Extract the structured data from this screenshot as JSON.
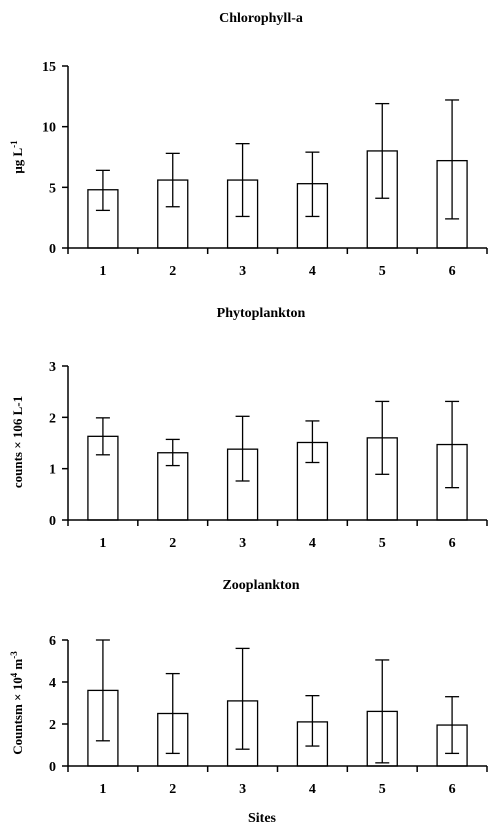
{
  "chart_data": [
    {
      "type": "bar",
      "title": "Chlorophyll-a",
      "xlabel": "",
      "ylabel_main": "μg L",
      "ylabel_sup": "-1",
      "categories": [
        "1",
        "2",
        "3",
        "4",
        "5",
        "6"
      ],
      "values": [
        4.8,
        5.6,
        5.6,
        5.3,
        8.0,
        7.2
      ],
      "error_low": [
        3.1,
        3.4,
        2.6,
        2.6,
        4.1,
        2.4
      ],
      "error_high": [
        6.4,
        7.8,
        8.6,
        7.9,
        11.9,
        12.2
      ],
      "ylim": [
        0,
        15
      ],
      "yticks": [
        "0",
        "5",
        "10",
        "15"
      ],
      "ytick_values": [
        0,
        5,
        10,
        15
      ],
      "grid": false,
      "colors": {
        "bar_fill": "#ffffff",
        "bar_stroke": "#000000"
      }
    },
    {
      "type": "bar",
      "title": "Phytoplankton",
      "xlabel": "",
      "ylabel_main": "counts × 106 L-1",
      "ylabel_sup": "",
      "categories": [
        "1",
        "2",
        "3",
        "4",
        "5",
        "6"
      ],
      "values": [
        1.63,
        1.31,
        1.38,
        1.51,
        1.6,
        1.47
      ],
      "error_low": [
        1.27,
        1.06,
        0.76,
        1.12,
        0.89,
        0.63
      ],
      "error_high": [
        1.99,
        1.57,
        2.02,
        1.93,
        2.31,
        2.31
      ],
      "ylim": [
        0,
        3
      ],
      "yticks": [
        "0",
        "1",
        "2",
        "3"
      ],
      "ytick_values": [
        0,
        1,
        2,
        3
      ],
      "grid": false,
      "colors": {
        "bar_fill": "#ffffff",
        "bar_stroke": "#000000"
      }
    },
    {
      "type": "bar",
      "title": "Zooplankton",
      "xlabel": "Sites",
      "ylabel_main": "Countsm × 10",
      "ylabel_sup": "4",
      "ylabel_tail": " m",
      "ylabel_tail_sup": "-3",
      "categories": [
        "1",
        "2",
        "3",
        "4",
        "5",
        "6"
      ],
      "values": [
        3.6,
        2.5,
        3.1,
        2.1,
        2.6,
        1.95
      ],
      "error_low": [
        1.2,
        0.6,
        0.8,
        0.95,
        0.15,
        0.6
      ],
      "error_high": [
        6.0,
        4.4,
        5.6,
        3.35,
        5.05,
        3.3
      ],
      "ylim": [
        0,
        6
      ],
      "yticks": [
        "0",
        "2",
        "4",
        "6"
      ],
      "ytick_values": [
        0,
        2,
        4,
        6
      ],
      "grid": false,
      "colors": {
        "bar_fill": "#ffffff",
        "bar_stroke": "#000000"
      }
    }
  ]
}
